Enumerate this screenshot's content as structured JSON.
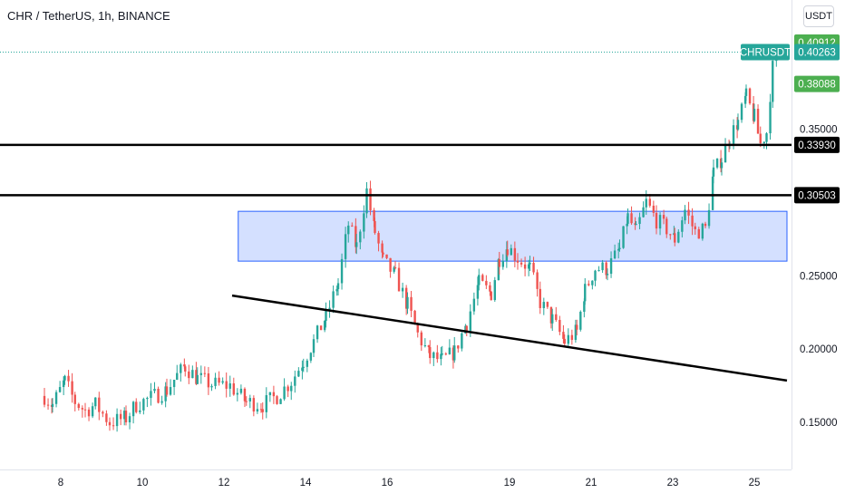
{
  "header": {
    "title": "CHR / TetherUS, 1h, BINANCE",
    "currency": "USDT"
  },
  "chart_data": {
    "type": "candlestick",
    "title": "CHR / TetherUS, 1h, BINANCE",
    "symbol": "CHRUSDT",
    "ylim": [
      0.125,
      0.42
    ],
    "y_ticks": [
      0.15,
      0.2,
      0.25,
      0.35
    ],
    "y_tick_labels": [
      "0.15000",
      "0.20000",
      "0.25000",
      "0.35000"
    ],
    "x_ticks": [
      8,
      10,
      12,
      14,
      16,
      19,
      21,
      23,
      25
    ],
    "x_tick_labels": [
      "8",
      "10",
      "12",
      "14",
      "16",
      "19",
      "21",
      "23",
      "25"
    ],
    "price_labels": [
      {
        "label": "0.40912",
        "value": 0.40912,
        "color": "#4caf50"
      },
      {
        "label": "CHRUSDT",
        "value": 0.40263,
        "color": "#26a69a"
      },
      {
        "label": "0.40263",
        "value": 0.40263,
        "color": "#26a69a"
      },
      {
        "label": "0.38088",
        "value": 0.38088,
        "color": "#4caf50"
      },
      {
        "label": "0.33930",
        "value": 0.3393,
        "color": "#000000"
      },
      {
        "label": "0.30503",
        "value": 0.30503,
        "color": "#000000"
      }
    ],
    "last_price": 0.40263,
    "horizontal_lines": [
      0.3393,
      0.30503
    ],
    "zone": {
      "x_start": 12.35,
      "x_end": 25.8,
      "y_low": 0.26,
      "y_high": 0.294,
      "color": "#2962ff"
    },
    "trendline": {
      "x1": 12.2,
      "y1": 0.2365,
      "x2": 25.8,
      "y2": 0.1785
    },
    "closes": [
      [
        7.6,
        0.168
      ],
      [
        7.8,
        0.162
      ],
      [
        8.1,
        0.178
      ],
      [
        8.35,
        0.164
      ],
      [
        8.6,
        0.158
      ],
      [
        8.85,
        0.162
      ],
      [
        9.2,
        0.15
      ],
      [
        9.6,
        0.153
      ],
      [
        9.85,
        0.162
      ],
      [
        10.3,
        0.168
      ],
      [
        10.6,
        0.172
      ],
      [
        10.85,
        0.182
      ],
      [
        11.05,
        0.188
      ],
      [
        11.35,
        0.18
      ],
      [
        11.7,
        0.176
      ],
      [
        12.15,
        0.175
      ],
      [
        12.55,
        0.164
      ],
      [
        12.95,
        0.162
      ],
      [
        13.3,
        0.168
      ],
      [
        13.65,
        0.178
      ],
      [
        13.95,
        0.192
      ],
      [
        14.2,
        0.205
      ],
      [
        14.5,
        0.222
      ],
      [
        14.8,
        0.245
      ],
      [
        15.05,
        0.285
      ],
      [
        15.25,
        0.27
      ],
      [
        15.5,
        0.308
      ],
      [
        15.7,
        0.28
      ],
      [
        15.9,
        0.26
      ],
      [
        16.2,
        0.25
      ],
      [
        16.5,
        0.23
      ],
      [
        16.75,
        0.21
      ],
      [
        17.05,
        0.195
      ],
      [
        17.35,
        0.192
      ],
      [
        17.65,
        0.198
      ],
      [
        17.95,
        0.218
      ],
      [
        18.25,
        0.245
      ],
      [
        18.55,
        0.238
      ],
      [
        18.75,
        0.262
      ],
      [
        18.95,
        0.27
      ],
      [
        19.2,
        0.262
      ],
      [
        19.5,
        0.255
      ],
      [
        19.75,
        0.232
      ],
      [
        20.05,
        0.22
      ],
      [
        20.35,
        0.205
      ],
      [
        20.65,
        0.212
      ],
      [
        20.85,
        0.24
      ],
      [
        21.1,
        0.255
      ],
      [
        21.4,
        0.255
      ],
      [
        21.7,
        0.268
      ],
      [
        21.9,
        0.29
      ],
      [
        22.1,
        0.28
      ],
      [
        22.35,
        0.3
      ],
      [
        22.6,
        0.288
      ],
      [
        22.85,
        0.282
      ],
      [
        23.05,
        0.275
      ],
      [
        23.3,
        0.295
      ],
      [
        23.55,
        0.28
      ],
      [
        23.8,
        0.282
      ],
      [
        24,
        0.32
      ],
      [
        24.2,
        0.33
      ],
      [
        24.4,
        0.345
      ],
      [
        24.6,
        0.355
      ],
      [
        24.8,
        0.372
      ],
      [
        25.0,
        0.358
      ],
      [
        25.15,
        0.34
      ],
      [
        25.3,
        0.348
      ],
      [
        25.45,
        0.392
      ],
      [
        25.55,
        0.4026
      ]
    ]
  }
}
